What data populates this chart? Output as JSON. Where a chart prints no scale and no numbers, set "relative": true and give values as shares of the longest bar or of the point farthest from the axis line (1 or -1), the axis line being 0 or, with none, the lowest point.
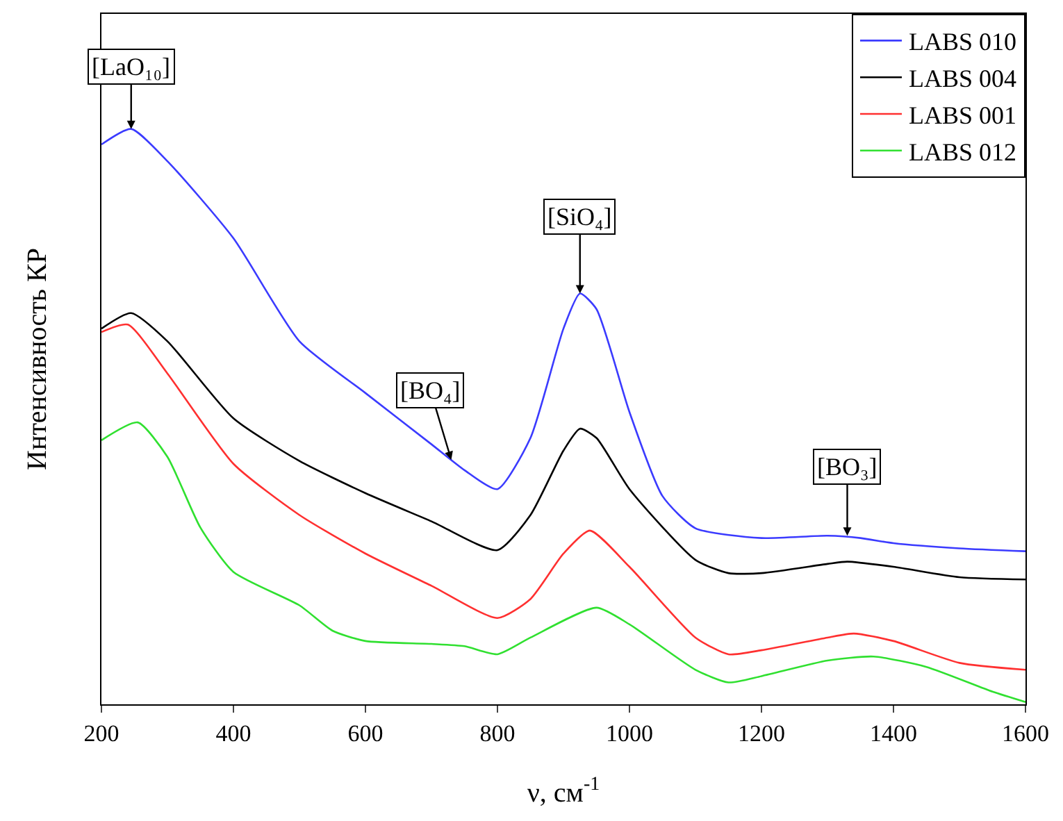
{
  "chart_data": {
    "type": "line",
    "relative": true,
    "xlabel": "ν, см$^{-1}$",
    "ylabel": "Интенсивность КР",
    "xlim": [
      200,
      1600
    ],
    "xticks": [
      200,
      400,
      600,
      800,
      1000,
      1200,
      1400,
      1600
    ],
    "grid": false,
    "legend": "top right",
    "series": [
      {
        "name": "LABS 010",
        "color": "#3b3bff",
        "x": [
          200,
          245,
          300,
          400,
          500,
          600,
          700,
          750,
          800,
          850,
          900,
          925,
          950,
          1000,
          1050,
          1100,
          1200,
          1300,
          1350,
          1400,
          1500,
          1600
        ],
        "values": [
          0.973,
          1.0,
          0.944,
          0.81,
          0.631,
          0.541,
          0.452,
          0.407,
          0.374,
          0.463,
          0.653,
          0.714,
          0.687,
          0.508,
          0.362,
          0.306,
          0.289,
          0.293,
          0.289,
          0.28,
          0.271,
          0.266
        ]
      },
      {
        "name": "LABS 004",
        "color": "#000000",
        "x": [
          200,
          245,
          300,
          400,
          500,
          600,
          700,
          800,
          850,
          900,
          925,
          950,
          1000,
          1100,
          1150,
          1200,
          1300,
          1330,
          1400,
          1500,
          1600
        ],
        "values": [
          0.653,
          0.68,
          0.631,
          0.497,
          0.423,
          0.367,
          0.318,
          0.268,
          0.329,
          0.441,
          0.479,
          0.463,
          0.374,
          0.251,
          0.228,
          0.228,
          0.244,
          0.248,
          0.239,
          0.221,
          0.217
        ]
      },
      {
        "name": "LABS 001",
        "color": "#ff3030",
        "x": [
          200,
          240,
          300,
          400,
          500,
          600,
          700,
          800,
          850,
          900,
          940,
          1000,
          1100,
          1150,
          1200,
          1300,
          1340,
          1400,
          1500,
          1600
        ],
        "values": [
          0.647,
          0.66,
          0.575,
          0.418,
          0.329,
          0.262,
          0.206,
          0.15,
          0.183,
          0.262,
          0.302,
          0.239,
          0.116,
          0.087,
          0.094,
          0.116,
          0.123,
          0.11,
          0.072,
          0.06
        ]
      },
      {
        "name": "LABS 012",
        "color": "#30e030",
        "x": [
          200,
          255,
          300,
          350,
          400,
          500,
          550,
          600,
          700,
          750,
          800,
          850,
          950,
          1000,
          1100,
          1150,
          1200,
          1300,
          1370,
          1450,
          1550,
          1600
        ],
        "values": [
          0.459,
          0.49,
          0.43,
          0.307,
          0.23,
          0.172,
          0.128,
          0.11,
          0.105,
          0.101,
          0.087,
          0.116,
          0.168,
          0.139,
          0.06,
          0.038,
          0.049,
          0.076,
          0.083,
          0.065,
          0.022,
          0.004
        ]
      }
    ],
    "annotations": [
      {
        "text": "[LaO₁₀]",
        "x": 245,
        "y": 1.0
      },
      {
        "text": "[BO₄]",
        "x": 730,
        "y": 0.425
      },
      {
        "text": "[SiO₄]",
        "x": 925,
        "y": 0.714
      },
      {
        "text": "[BO₃]",
        "x": 1330,
        "y": 0.293
      }
    ]
  }
}
